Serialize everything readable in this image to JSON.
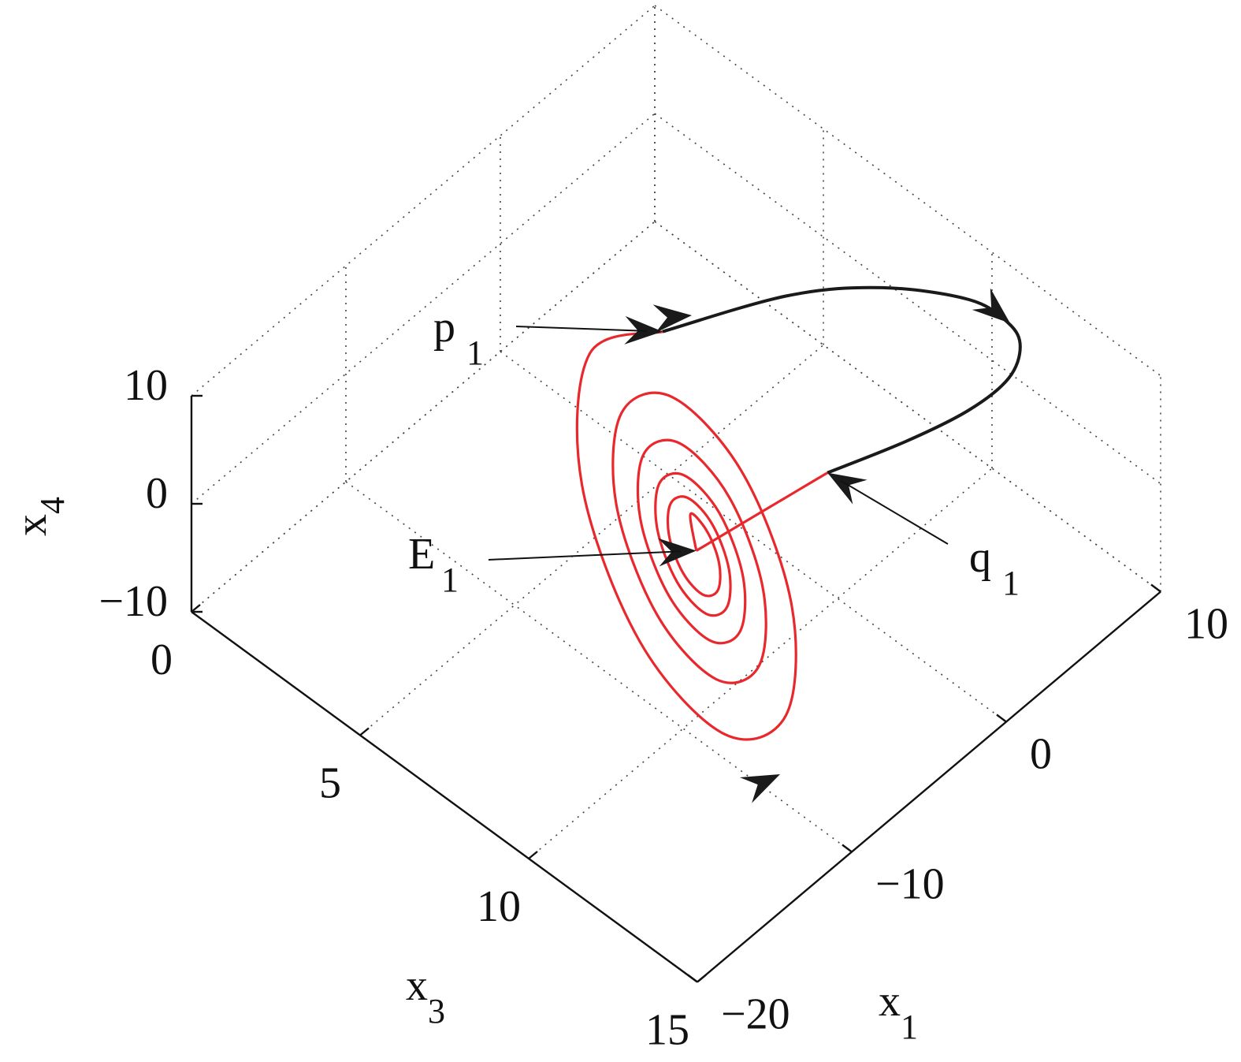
{
  "chart_data": {
    "type": "line3d",
    "x1label": {
      "text": "x",
      "sub": "1"
    },
    "x3label": {
      "text": "x",
      "sub": "3"
    },
    "x4label": {
      "text": "x",
      "sub": "4"
    },
    "x1lim": [
      -20,
      10
    ],
    "x1ticks": [
      {
        "value": -20,
        "label": "−20"
      },
      {
        "value": -10,
        "label": "−10"
      },
      0,
      10
    ],
    "x3lim": [
      0,
      15
    ],
    "x3ticks": [
      0,
      5,
      10,
      15
    ],
    "x4lim": [
      -10,
      10
    ],
    "x4ticks": [
      {
        "value": -10,
        "label": "−10"
      },
      0,
      10
    ],
    "grid": true,
    "series": [
      {
        "color": "#e8282c",
        "x1": [
          -5,
          -5,
          -5,
          -5,
          -5,
          -5,
          -5,
          -5,
          -5,
          -5,
          -5,
          -5,
          -5,
          -5,
          -5,
          -5,
          -5,
          -5,
          -5,
          -5,
          -5,
          -5,
          -5,
          -5,
          -5,
          -5,
          -5,
          -5,
          -5,
          -5,
          -5,
          -5,
          -5,
          -5,
          -5,
          -5,
          -5,
          -5,
          -5,
          -5,
          -5,
          -5
        ],
        "x3": [
          7.1,
          4.93,
          4.71,
          6.43,
          8.94,
          10.76,
          10.93,
          9.5,
          7.4,
          5.88,
          5.73,
          6.93,
          8.69,
          9.96,
          10.08,
          9.08,
          7.61,
          6.54,
          6.44,
          7.28,
          8.51,
          9.4,
          9.49,
          8.79,
          7.76,
          7.01,
          6.94,
          7.53,
          8.39,
          9.01,
          9.07,
          8.58,
          7.86,
          7.34,
          7.29,
          7.7,
          8.3,
          8.74,
          8.78,
          8.44,
          7.93,
          8.1
        ],
        "x4": [
          14.1,
          7.05,
          -5.55,
          -16.15,
          -18.97,
          -13.06,
          -2.52,
          6.35,
          8.7,
          3.76,
          -5.05,
          -12.47,
          -14.45,
          -10.31,
          -2.94,
          3.27,
          4.92,
          1.47,
          -4.71,
          -9.91,
          -11.28,
          -8.39,
          -3.22,
          1.13,
          2.27,
          -0.14,
          -4.47,
          -8.1,
          -9.07,
          -7.05,
          -3.43,
          -0.39,
          0.42,
          -1.27,
          -4.3,
          -6.84,
          -7.52,
          -6.1,
          -3.57,
          -1.44,
          -0.88,
          -3.9
        ]
      },
      {
        "color": "#e8282c",
        "x1": [
          -5,
          -5
        ],
        "x3": [
          8.1,
          11.99
        ],
        "x4": [
          -3.9,
          12.2
        ]
      },
      {
        "color": "#1a1a1a",
        "x1": [
          -5,
          2.96,
          6.13,
          8.25,
          8.47,
          7.85,
          6.2,
          3.71,
          0.52,
          -5
        ],
        "x3": [
          7.1,
          7.17,
          8.52,
          10.12,
          11.19,
          11.82,
          12.23,
          12.2,
          11.79,
          11.99
        ],
        "x4": [
          14.1,
          8,
          8,
          8,
          8,
          8,
          8,
          8,
          8,
          12.2
        ]
      }
    ],
    "annotations": [
      {
        "text": "p",
        "sub": "1"
      },
      {
        "text": "E",
        "sub": "1"
      },
      {
        "text": "q",
        "sub": "1"
      }
    ]
  }
}
